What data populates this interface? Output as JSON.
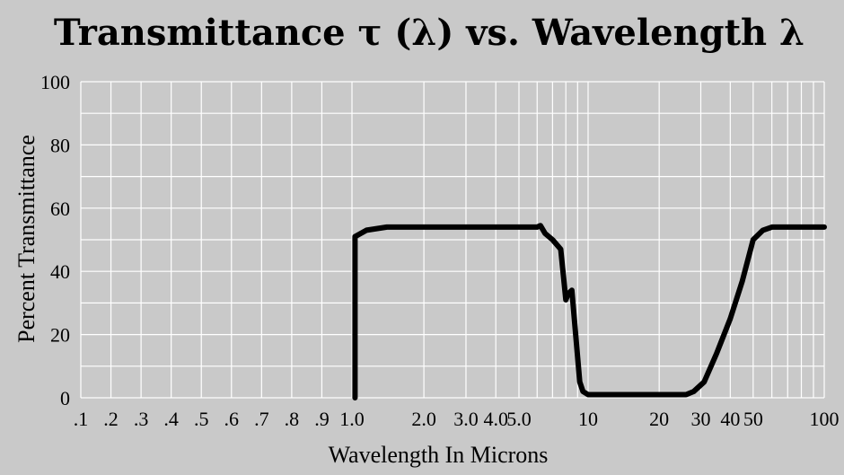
{
  "chart_data": {
    "type": "line",
    "title": "Transmittance τ (λ)  vs. Wavelength λ",
    "xlabel": "Wavelength In Microns",
    "ylabel": "Percent Transmittance",
    "x_scale": "segmented-log",
    "xlim": [
      0.1,
      100
    ],
    "ylim": [
      0,
      100
    ],
    "grid": true,
    "colors": {
      "background": "#c9c9c9",
      "grid": "#ffffff",
      "line": "#000000"
    },
    "y_ticks": [
      {
        "value": 0,
        "label": "0"
      },
      {
        "value": 20,
        "label": "20"
      },
      {
        "value": 40,
        "label": "40"
      },
      {
        "value": 60,
        "label": "60"
      },
      {
        "value": 80,
        "label": "80"
      },
      {
        "value": 100,
        "label": "100"
      }
    ],
    "x_ticks": [
      {
        "value": 0.1,
        "label": ".1"
      },
      {
        "value": 0.2,
        "label": ".2"
      },
      {
        "value": 0.3,
        "label": ".3"
      },
      {
        "value": 0.4,
        "label": ".4"
      },
      {
        "value": 0.5,
        "label": ".5"
      },
      {
        "value": 0.6,
        "label": ".6"
      },
      {
        "value": 0.7,
        "label": ".7"
      },
      {
        "value": 0.8,
        "label": ".8"
      },
      {
        "value": 0.9,
        "label": ".9"
      },
      {
        "value": 1.0,
        "label": "1.0"
      },
      {
        "value": 2.0,
        "label": "2.0"
      },
      {
        "value": 3.0,
        "label": "3.0"
      },
      {
        "value": 4.0,
        "label": "4.0"
      },
      {
        "value": 5.0,
        "label": "5.0"
      },
      {
        "value": 10,
        "label": "10"
      },
      {
        "value": 20,
        "label": "20"
      },
      {
        "value": 30,
        "label": "30"
      },
      {
        "value": 40,
        "label": "40"
      },
      {
        "value": 50,
        "label": "50"
      },
      {
        "value": 100,
        "label": "100"
      }
    ],
    "x_grid": [
      0.1,
      0.2,
      0.3,
      0.4,
      0.5,
      0.6,
      0.7,
      0.8,
      0.9,
      1.0,
      2.0,
      3.0,
      4.0,
      5.0,
      6.0,
      7.0,
      8.0,
      9.0,
      10,
      20,
      30,
      40,
      50,
      60,
      70,
      80,
      90,
      100
    ],
    "y_grid": [
      0,
      10,
      20,
      30,
      40,
      50,
      60,
      70,
      80,
      90,
      100
    ],
    "series": [
      {
        "points": [
          [
            1.03,
            0
          ],
          [
            1.03,
            51
          ],
          [
            1.15,
            53
          ],
          [
            1.4,
            54
          ],
          [
            2.0,
            54
          ],
          [
            3.0,
            54
          ],
          [
            5.0,
            54
          ],
          [
            6.0,
            54
          ],
          [
            6.2,
            54.5
          ],
          [
            6.5,
            52
          ],
          [
            7.0,
            50
          ],
          [
            7.6,
            47
          ],
          [
            8.0,
            31
          ],
          [
            8.2,
            33
          ],
          [
            8.5,
            34
          ],
          [
            9.2,
            5
          ],
          [
            9.5,
            2
          ],
          [
            10,
            1
          ],
          [
            15,
            1
          ],
          [
            20,
            1
          ],
          [
            26,
            1
          ],
          [
            28,
            2
          ],
          [
            31,
            5
          ],
          [
            35,
            14
          ],
          [
            40,
            25
          ],
          [
            45,
            37
          ],
          [
            50,
            50
          ],
          [
            55,
            53
          ],
          [
            60,
            54
          ],
          [
            80,
            54
          ],
          [
            100,
            54
          ]
        ]
      }
    ]
  }
}
